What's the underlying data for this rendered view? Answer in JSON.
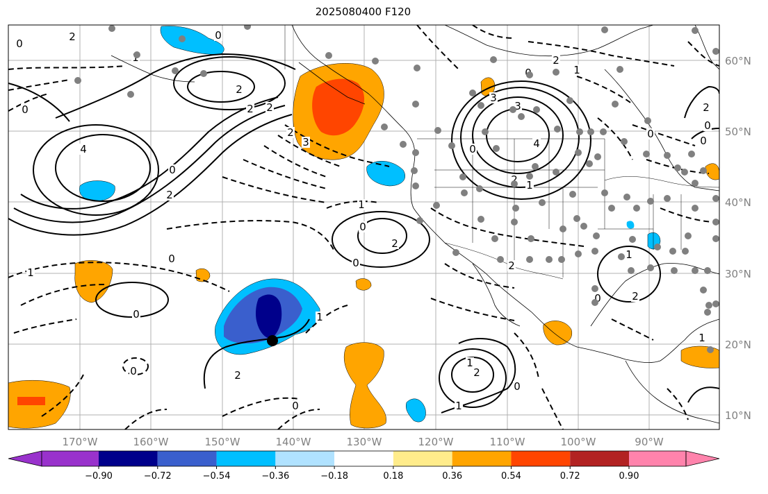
{
  "title": "2025080400 F120",
  "map": {
    "latitude_labels": [
      "60°N",
      "50°N",
      "40°N",
      "30°N",
      "20°N",
      "10°N"
    ],
    "longitude_labels": [
      "170°W",
      "160°W",
      "150°W",
      "140°W",
      "130°W",
      "120°W",
      "110°W",
      "100°W",
      "90°W"
    ],
    "contour_labels": [
      "2",
      "0",
      "0",
      "1",
      "2",
      "2",
      "3",
      "0",
      "0",
      "2",
      "2",
      "4",
      "2",
      "2",
      "3",
      "0",
      "0",
      "2",
      "1",
      "4",
      "0",
      "0",
      "2",
      "1",
      "0",
      "2",
      "1",
      "0",
      "3",
      "2",
      "1",
      "1",
      "0",
      "0",
      "1",
      "0",
      "2",
      "0",
      "0",
      "2",
      "0",
      "2",
      "1",
      "1",
      "1",
      "0",
      "0"
    ],
    "colors": {
      "grid": "#b0b0b0",
      "coast": "#000000",
      "station": "#808080",
      "marker": "#000000"
    }
  },
  "colorbar": {
    "tick_labels": [
      "−0.90",
      "−0.72",
      "−0.54",
      "−0.36",
      "−0.18",
      "0.18",
      "0.36",
      "0.54",
      "0.72",
      "0.90"
    ],
    "bins": [
      {
        "color": "#9932cc"
      },
      {
        "color": "#00008b"
      },
      {
        "color": "#3a5fcd"
      },
      {
        "color": "#00bfff"
      },
      {
        "color": "#b0e2ff"
      },
      {
        "color": "#ffffff"
      },
      {
        "color": "#ffec8b"
      },
      {
        "color": "#ffa500"
      },
      {
        "color": "#ff4500"
      },
      {
        "color": "#b22222"
      },
      {
        "color": "#ff83ac"
      }
    ]
  }
}
